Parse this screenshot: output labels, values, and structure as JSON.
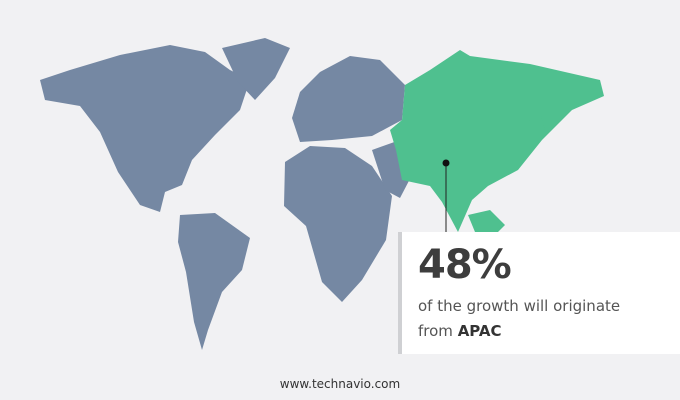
{
  "colors": {
    "background": "#f1f1f3",
    "other_regions": "#7588a3",
    "highlight_region": "#4fc08f",
    "text": "#3d3d3d"
  },
  "highlighted_region": "APAC",
  "callout": {
    "value": "48%",
    "text": "of the growth will originate",
    "prefix": "from",
    "region": "APAC"
  },
  "footer": {
    "url": "www.technavio.com"
  }
}
